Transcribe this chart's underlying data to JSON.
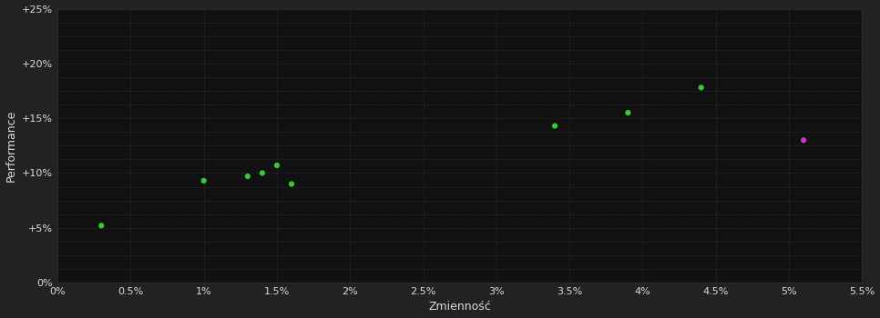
{
  "background_color": "#222222",
  "plot_bg_color": "#111111",
  "grid_color": "#444444",
  "text_color": "#dddddd",
  "xlabel": "Zmienność",
  "ylabel": "Performance",
  "xlim": [
    0,
    0.055
  ],
  "ylim": [
    0,
    0.25
  ],
  "xticks": [
    0,
    0.005,
    0.01,
    0.015,
    0.02,
    0.025,
    0.03,
    0.035,
    0.04,
    0.045,
    0.05,
    0.055
  ],
  "yticks": [
    0,
    0.05,
    0.1,
    0.15,
    0.2,
    0.25
  ],
  "xtick_labels": [
    "0%",
    "0.5%",
    "1%",
    "1.5%",
    "2%",
    "2.5%",
    "3%",
    "3.5%",
    "4%",
    "4.5%",
    "5%",
    "5.5%"
  ],
  "ytick_labels": [
    "0%",
    "+5%",
    "+10%",
    "+15%",
    "+20%",
    "+25%"
  ],
  "green_points": [
    [
      0.003,
      0.052
    ],
    [
      0.01,
      0.093
    ],
    [
      0.013,
      0.097
    ],
    [
      0.014,
      0.1
    ],
    [
      0.015,
      0.107
    ],
    [
      0.016,
      0.09
    ],
    [
      0.034,
      0.143
    ],
    [
      0.039,
      0.155
    ],
    [
      0.044,
      0.178
    ]
  ],
  "magenta_points": [
    [
      0.051,
      0.13
    ]
  ],
  "green_color": "#33cc33",
  "magenta_color": "#cc33cc",
  "marker_size": 20,
  "axis_fontsize": 9,
  "tick_fontsize": 8
}
